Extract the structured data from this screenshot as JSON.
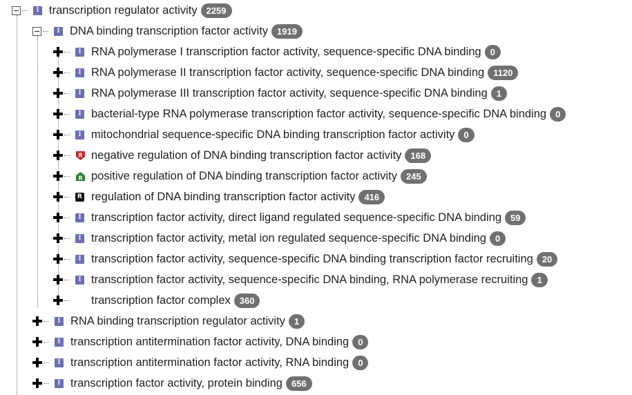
{
  "tree": {
    "root": {
      "label": "transcription regulator activity",
      "count": "2259",
      "icon": "info-icon"
    },
    "child": {
      "label": "DNA binding transcription factor activity",
      "count": "1919",
      "icon": "info-icon"
    },
    "grandchildren": [
      {
        "label": "RNA polymerase I transcription factor activity, sequence-specific DNA binding",
        "count": "0",
        "icon": "info-icon"
      },
      {
        "label": "RNA polymerase II transcription factor activity, sequence-specific DNA binding",
        "count": "1120",
        "icon": "info-icon"
      },
      {
        "label": "RNA polymerase III transcription factor activity, sequence-specific DNA binding",
        "count": "1",
        "icon": "info-icon"
      },
      {
        "label": "bacterial-type RNA polymerase transcription factor activity, sequence-specific DNA binding",
        "count": "0",
        "icon": "info-icon"
      },
      {
        "label": "mitochondrial sequence-specific DNA binding transcription factor activity",
        "count": "0",
        "icon": "info-icon"
      },
      {
        "label": "negative regulation of DNA binding transcription factor activity",
        "count": "168",
        "icon": "negative-regulation-icon"
      },
      {
        "label": "positive regulation of DNA binding transcription factor activity",
        "count": "245",
        "icon": "positive-regulation-icon"
      },
      {
        "label": "regulation of DNA binding transcription factor activity",
        "count": "416",
        "icon": "regulation-icon"
      },
      {
        "label": "transcription factor activity, direct ligand regulated sequence-specific DNA binding",
        "count": "59",
        "icon": "info-icon"
      },
      {
        "label": "transcription factor activity, metal ion regulated sequence-specific DNA binding",
        "count": "0",
        "icon": "info-icon"
      },
      {
        "label": "transcription factor activity, sequence-specific DNA binding transcription factor recruiting",
        "count": "20",
        "icon": "info-icon"
      },
      {
        "label": "transcription factor activity, sequence-specific DNA binding, RNA polymerase recruiting",
        "count": "1",
        "icon": "info-icon"
      },
      {
        "label": "transcription factor complex",
        "count": "360",
        "icon": "none"
      }
    ],
    "siblings": [
      {
        "label": "RNA binding transcription regulator activity",
        "count": "1",
        "icon": "info-icon"
      },
      {
        "label": "transcription antitermination factor activity, DNA binding",
        "count": "0",
        "icon": "info-icon"
      },
      {
        "label": "transcription antitermination factor activity, RNA binding",
        "count": "0",
        "icon": "info-icon"
      },
      {
        "label": "transcription factor activity, protein binding",
        "count": "656",
        "icon": "info-icon"
      }
    ],
    "icon_glyphs": {
      "info": "I",
      "regulation": "R"
    },
    "colors": {
      "info_icon": "#6c6fb1",
      "negative_regulation": "#c8262d",
      "positive_regulation": "#2e7d32",
      "regulation": "#111111",
      "badge": "#707070"
    }
  }
}
